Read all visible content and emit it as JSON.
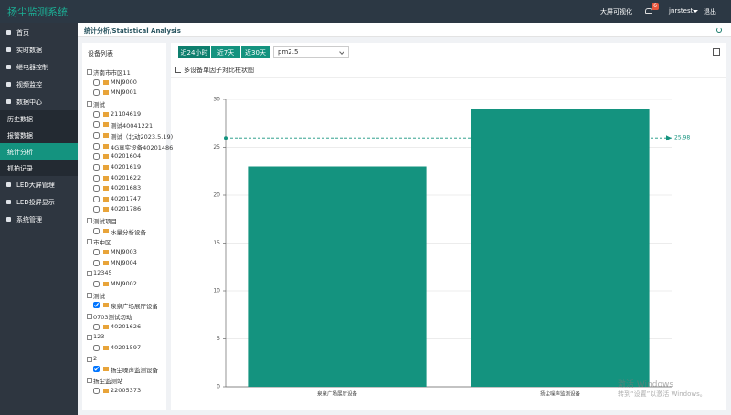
{
  "header": {
    "title": "扬尘监测系统",
    "screen_link": "大屏可视化",
    "badge": "6",
    "user": "jnrstest",
    "logout": "退出"
  },
  "sidebar": {
    "items": [
      {
        "label": "首页"
      },
      {
        "label": "实时数据"
      },
      {
        "label": "继电器控制"
      },
      {
        "label": "视频监控"
      },
      {
        "label": "数据中心",
        "children": [
          {
            "label": "历史数据"
          },
          {
            "label": "报警数据"
          },
          {
            "label": "统计分析",
            "active": true
          },
          {
            "label": "抓拍记录"
          }
        ]
      },
      {
        "label": "LED大屏管理"
      },
      {
        "label": "LED投屏显示"
      },
      {
        "label": "系统管理"
      }
    ]
  },
  "breadcrumb": "统计分析/Statistical Analysis",
  "device_panel": {
    "title": "设备列表",
    "groups": [
      {
        "name": "济南市市区11",
        "devices": [
          {
            "name": "MNJ9000",
            "checked": false
          },
          {
            "name": "MNJ9001",
            "checked": false
          }
        ]
      },
      {
        "name": "测试",
        "devices": [
          {
            "name": "21104619",
            "checked": false
          },
          {
            "name": "测试40041221",
            "checked": false
          },
          {
            "name": "测试（北动2023.5.19)",
            "checked": false
          },
          {
            "name": "4G真实设备40201486",
            "checked": false
          },
          {
            "name": "40201604",
            "checked": false
          },
          {
            "name": "40201619",
            "checked": false
          },
          {
            "name": "40201622",
            "checked": false
          },
          {
            "name": "40201683",
            "checked": false
          },
          {
            "name": "40201747",
            "checked": false
          },
          {
            "name": "40201786",
            "checked": false
          }
        ]
      },
      {
        "name": "测试项目",
        "devices": [
          {
            "name": "水量分析设备",
            "checked": false
          }
        ]
      },
      {
        "name": "市中区",
        "devices": [
          {
            "name": "MNJ9003",
            "checked": false
          },
          {
            "name": "MNJ9004",
            "checked": false
          }
        ]
      },
      {
        "name": "12345",
        "devices": [
          {
            "name": "MNJ9002",
            "checked": false
          }
        ]
      },
      {
        "name": "测试",
        "devices": [
          {
            "name": "泉泉广场展厅设备",
            "checked": true
          }
        ]
      },
      {
        "name": "0703测试勿动",
        "devices": [
          {
            "name": "40201626",
            "checked": false
          }
        ]
      },
      {
        "name": "123",
        "devices": [
          {
            "name": "40201597",
            "checked": false
          }
        ]
      },
      {
        "name": "2",
        "devices": [
          {
            "name": "扬尘噪声监测设备",
            "checked": true
          }
        ]
      },
      {
        "name": "扬尘监测站",
        "devices": [
          {
            "name": "22005373",
            "checked": false
          }
        ]
      }
    ]
  },
  "toolbar": {
    "tabs": [
      "近24小时",
      "近7天",
      "近30天"
    ],
    "active_tab": 0,
    "factor": "pm2.5"
  },
  "chart_data": {
    "type": "bar",
    "title": "多设备单因子对比柱状图",
    "categories": [
      "泉泉广场展厅设备",
      "扬尘噪声监测设备"
    ],
    "values": [
      23,
      28.96
    ],
    "color": "#14937f",
    "ylim": [
      0,
      30
    ],
    "yticks": [
      0,
      5,
      10,
      15,
      20,
      25,
      30
    ],
    "grid": true,
    "mark_line": {
      "value": 25.98,
      "color": "#14937f"
    }
  },
  "watermark": {
    "title": "激活 Windows",
    "text": "转到“设置”以激活 Windows。"
  }
}
